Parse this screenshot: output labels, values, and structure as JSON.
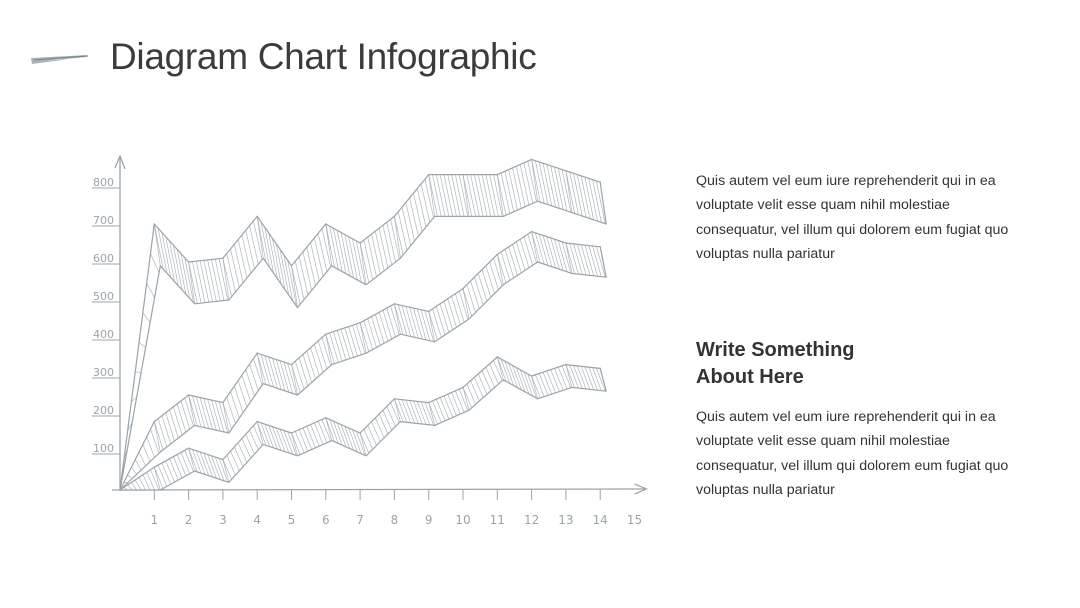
{
  "header": {
    "title": "Diagram Chart Infographic"
  },
  "side": {
    "paragraph_1": "Quis autem vel eum iure reprehenderit qui in ea voluptate velit esse quam nihil molestiae consequatur, vel illum qui dolorem eum fugiat quo voluptas nulla pariatur",
    "heading_line_1": "Write Something",
    "heading_line_2": "About Here",
    "paragraph_2": "Quis autem vel eum iure reprehenderit qui in ea voluptate velit esse quam nihil molestiae consequatur, vel illum qui dolorem eum fugiat quo voluptas nulla pariatur"
  },
  "colors": {
    "sketch": "#9aa4ab",
    "text": "#3b3b3b"
  },
  "chart_data": {
    "type": "area",
    "x_ticks": [
      "1",
      "2",
      "3",
      "4",
      "5",
      "6",
      "7",
      "8",
      "9",
      "10",
      "11",
      "12",
      "13",
      "14",
      "15"
    ],
    "y_ticks": [
      "100",
      "200",
      "300",
      "400",
      "500",
      "600",
      "700",
      "800"
    ],
    "xlim": [
      0,
      15
    ],
    "ylim": [
      0,
      800
    ],
    "grid": false,
    "series": [
      {
        "x": [
          0,
          1,
          2,
          3,
          4,
          5,
          6,
          7,
          8,
          9,
          10,
          11,
          12,
          13,
          14
        ],
        "values": [
          0,
          700,
          600,
          610,
          720,
          590,
          700,
          650,
          720,
          830,
          830,
          830,
          870,
          840,
          810
        ],
        "band": 110
      },
      {
        "x": [
          0,
          1,
          2,
          3,
          4,
          5,
          6,
          7,
          8,
          9,
          10,
          11,
          12,
          13,
          14
        ],
        "values": [
          0,
          180,
          250,
          230,
          360,
          330,
          410,
          440,
          490,
          470,
          530,
          620,
          680,
          650,
          640
        ],
        "band": 80
      },
      {
        "x": [
          0,
          1,
          2,
          3,
          4,
          5,
          6,
          7,
          8,
          9,
          10,
          11,
          12,
          13,
          14
        ],
        "values": [
          0,
          60,
          110,
          80,
          180,
          150,
          190,
          150,
          240,
          230,
          270,
          350,
          300,
          330,
          320
        ],
        "band": 60
      }
    ]
  }
}
